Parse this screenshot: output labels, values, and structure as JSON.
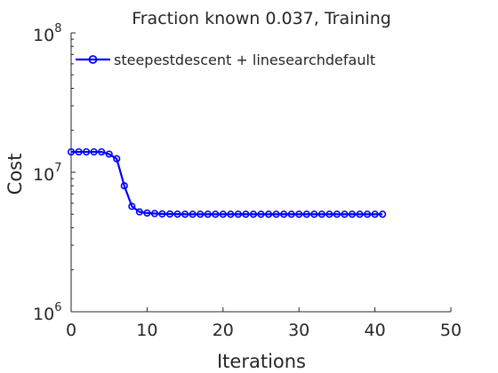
{
  "chart_data": {
    "type": "line",
    "title": "Fraction known 0.037, Training",
    "xlabel": "Iterations",
    "ylabel": "Cost",
    "xlim": [
      0,
      50
    ],
    "ylim": [
      1000000,
      100000000
    ],
    "yscale": "log",
    "xticks": [
      0,
      10,
      20,
      30,
      40,
      50
    ],
    "xtick_labels": [
      "0",
      "10",
      "20",
      "30",
      "40",
      "50"
    ],
    "yticks": [
      1000000,
      10000000,
      100000000
    ],
    "ytick_labels": [
      {
        "base": "10",
        "exp": "6"
      },
      {
        "base": "10",
        "exp": "7"
      },
      {
        "base": "10",
        "exp": "8"
      }
    ],
    "grid": false,
    "legend_position": "top-left",
    "series": [
      {
        "name": "steepestdescent + linesearchdefault",
        "color": "#0000ff",
        "marker": "circle",
        "x": [
          0,
          1,
          2,
          3,
          4,
          5,
          6,
          7,
          8,
          9,
          10,
          11,
          12,
          13,
          14,
          15,
          16,
          17,
          18,
          19,
          20,
          21,
          22,
          23,
          24,
          25,
          26,
          27,
          28,
          29,
          30,
          31,
          32,
          33,
          34,
          35,
          36,
          37,
          38,
          39,
          40,
          41
        ],
        "y": [
          14000000,
          14000000,
          14000000,
          14000000,
          14000000,
          13500000,
          12500000,
          8000000,
          5700000,
          5200000,
          5100000,
          5060000,
          5030000,
          5020000,
          5010000,
          5000000,
          5000000,
          5000000,
          5000000,
          5000000,
          5000000,
          5000000,
          5000000,
          5000000,
          5000000,
          5000000,
          5000000,
          5000000,
          5000000,
          5000000,
          5000000,
          5000000,
          5000000,
          5000000,
          5000000,
          5000000,
          5000000,
          5000000,
          5000000,
          5000000,
          5000000,
          5000000
        ]
      }
    ]
  }
}
